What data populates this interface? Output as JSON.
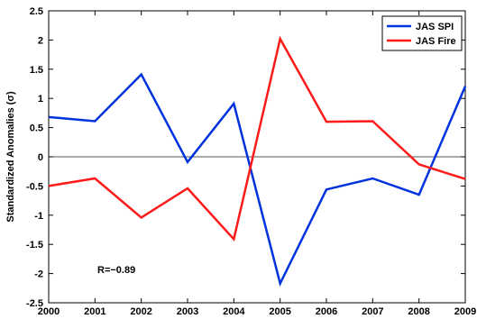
{
  "chart_data": {
    "type": "line",
    "x": [
      2000,
      2001,
      2002,
      2003,
      2004,
      2005,
      2006,
      2007,
      2008,
      2009
    ],
    "series": [
      {
        "name": "JAS SPI",
        "color": "#0033dd",
        "values": [
          0.68,
          0.61,
          1.41,
          -0.09,
          0.91,
          -2.17,
          -0.56,
          -0.37,
          -0.65,
          1.21
        ]
      },
      {
        "name": "JAS Fire",
        "color": "#ff1a1a",
        "values": [
          -0.5,
          -0.37,
          -1.04,
          -0.54,
          -1.41,
          2.02,
          0.6,
          0.61,
          -0.13,
          -0.38
        ]
      }
    ],
    "xlim": [
      2000,
      2009
    ],
    "ylim": [
      -2.5,
      2.5
    ],
    "yticks": [
      -2.5,
      -2,
      -1.5,
      -1,
      -0.5,
      0,
      0.5,
      1,
      1.5,
      2,
      2.5
    ],
    "ytick_labels": [
      "-2.5",
      "-2",
      "-1.5",
      "-1",
      "-0.5",
      "0",
      "0.5",
      "1",
      "1.5",
      "2",
      "2.5"
    ],
    "xtick_labels": [
      "2000",
      "2001",
      "2002",
      "2003",
      "2004",
      "2005",
      "2006",
      "2007",
      "2008",
      "2009"
    ],
    "ylabel": "Standardized Anomalies (σ)",
    "xlabel": "",
    "title": "",
    "legend_position": "top-right",
    "zero_line": true,
    "grid": false,
    "annotation": "R=−0.89"
  }
}
